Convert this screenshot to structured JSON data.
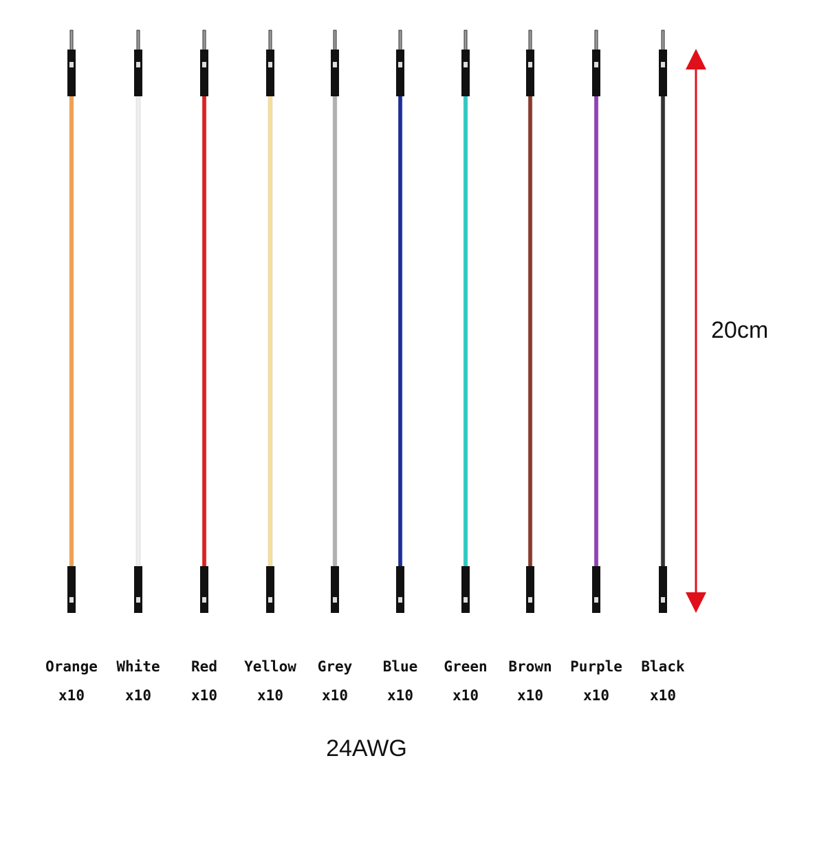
{
  "wires": [
    {
      "label": "Orange",
      "count": "x10",
      "color": "#f0a050"
    },
    {
      "label": "White",
      "count": "x10",
      "color": "#eeeeee"
    },
    {
      "label": "Red",
      "count": "x10",
      "color": "#e02020"
    },
    {
      "label": "Yellow",
      "count": "x10",
      "color": "#f7df98"
    },
    {
      "label": "Grey",
      "count": "x10",
      "color": "#b0b0b0"
    },
    {
      "label": "Blue",
      "count": "x10",
      "color": "#1a2f9c"
    },
    {
      "label": "Green",
      "count": "x10",
      "color": "#2ec9c4"
    },
    {
      "label": "Brown",
      "count": "x10",
      "color": "#8a3a2a"
    },
    {
      "label": "Purple",
      "count": "x10",
      "color": "#9240b8"
    },
    {
      "label": "Black",
      "count": "x10",
      "color": "#333333"
    }
  ],
  "length": "20cm",
  "gauge": "24AWG"
}
